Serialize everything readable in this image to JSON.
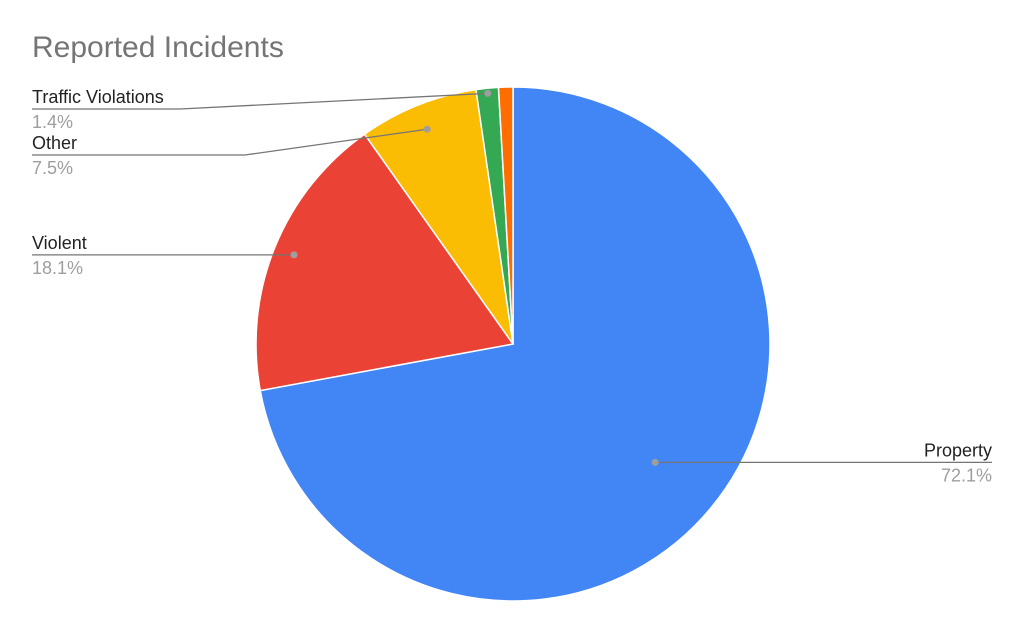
{
  "chart_data": {
    "type": "pie",
    "title": "Reported Incidents",
    "slices": [
      {
        "label": "Property",
        "percent_label": "72.1%",
        "value": 72.1,
        "color": "#4285F4"
      },
      {
        "label": "Violent",
        "percent_label": "18.1%",
        "value": 18.1,
        "color": "#EA4335"
      },
      {
        "label": "Other",
        "percent_label": "7.5%",
        "value": 7.5,
        "color": "#FBBC04"
      },
      {
        "label": "Traffic Violations",
        "percent_label": "1.4%",
        "value": 1.4,
        "color": "#34A853"
      },
      {
        "label": "",
        "percent_label": "",
        "value": 0.9,
        "color": "#FF6D01"
      }
    ],
    "start_angle": "12 o'clock",
    "direction": "clockwise",
    "legend": "none (callout labels)"
  }
}
